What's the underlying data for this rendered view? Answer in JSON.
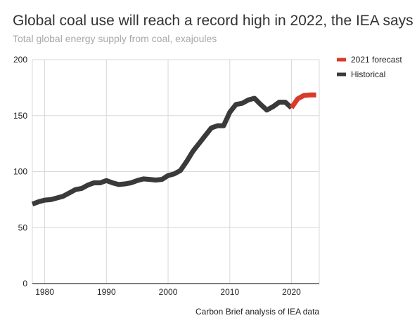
{
  "chart_data": {
    "type": "line",
    "title": "Global coal use will reach a record high in 2022, the IEA says",
    "subtitle": "Total global energy supply from coal, exajoules",
    "source": "Carbon Brief analysis of IEA data",
    "xlabel": "",
    "ylabel": "",
    "xlim": [
      1978,
      2024.5
    ],
    "ylim": [
      0,
      200
    ],
    "x_ticks": [
      1980,
      1990,
      2000,
      2010,
      2020
    ],
    "y_ticks": [
      0,
      50,
      100,
      150,
      200
    ],
    "grid": true,
    "legend_position": "right",
    "series": [
      {
        "name": "2021 forecast",
        "color": "#d93b2b",
        "x": [
          2020,
          2021,
          2022,
          2023,
          2024
        ],
        "values": [
          157,
          165,
          168,
          168.5,
          168.5
        ]
      },
      {
        "name": "Historical",
        "color": "#3a3a3a",
        "x": [
          1978,
          1979,
          1980,
          1981,
          1982,
          1983,
          1984,
          1985,
          1986,
          1987,
          1988,
          1989,
          1990,
          1991,
          1992,
          1993,
          1994,
          1995,
          1996,
          1997,
          1998,
          1999,
          2000,
          2001,
          2002,
          2003,
          2004,
          2005,
          2006,
          2007,
          2008,
          2009,
          2010,
          2011,
          2012,
          2013,
          2014,
          2015,
          2016,
          2017,
          2018,
          2019,
          2020
        ],
        "values": [
          71,
          73,
          74.5,
          75,
          76.5,
          78,
          81,
          84,
          85,
          88,
          90,
          90,
          92,
          90,
          88.5,
          89,
          90,
          92,
          93.5,
          93,
          92.5,
          93,
          96.5,
          98,
          101,
          109,
          118,
          125,
          132,
          139,
          141,
          141,
          153,
          160,
          161,
          164,
          165.5,
          160,
          155,
          158,
          162,
          162,
          157
        ]
      }
    ]
  }
}
